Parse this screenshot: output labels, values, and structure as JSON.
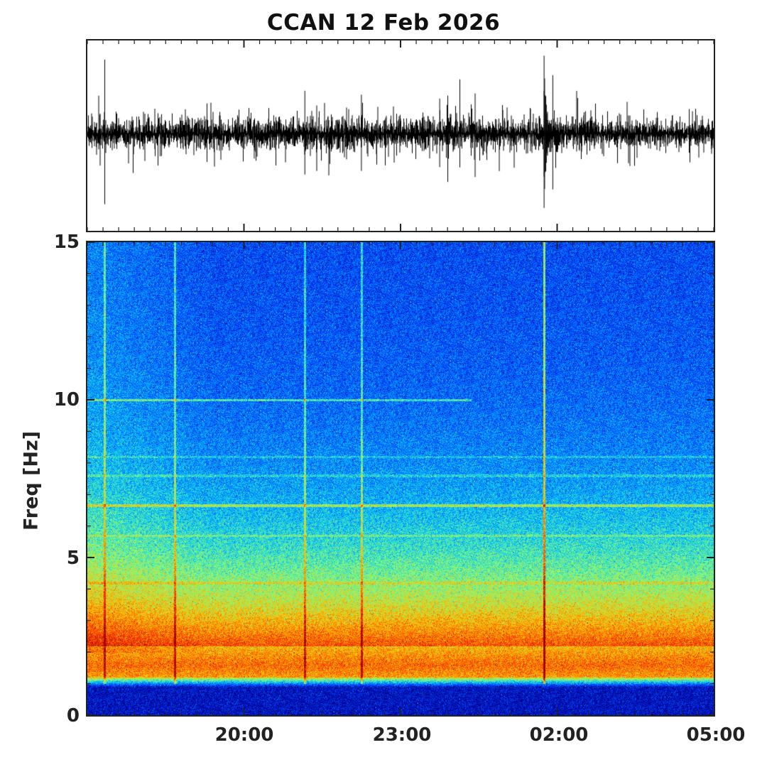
{
  "chart_data": [
    {
      "type": "line",
      "title": "CCAN  12 Feb 2026",
      "description": "seismogram trace",
      "x_range": [
        "17:00",
        "05:00"
      ],
      "events": [
        {
          "time": "17:20",
          "amplitude": 0.95
        },
        {
          "time": "21:10",
          "amplitude": 0.55
        },
        {
          "time": "22:15",
          "amplitude": 0.5
        },
        {
          "time": "23:45",
          "amplitude": 0.45
        },
        {
          "time": "01:45",
          "amplitude": 1.0
        },
        {
          "time": "01:55",
          "amplitude": 0.75
        }
      ]
    },
    {
      "type": "heatmap",
      "ylabel": "Freq [Hz]",
      "ylim": [
        0,
        15
      ],
      "yticks": [
        0,
        5,
        10,
        15
      ],
      "xticks": [
        "20:00",
        "23:00",
        "02:00",
        "05:00"
      ],
      "x_range": [
        "17:00",
        "05:00"
      ],
      "colormap": [
        "#00008f",
        "#0040ff",
        "#00c0ff",
        "#80ff80",
        "#ffc000",
        "#ff4000",
        "#a00000"
      ],
      "dominant_band_hz": [
        1.2,
        2.2
      ],
      "spectral_lines_hz": [
        10.0,
        6.65,
        8.2,
        7.6,
        5.7,
        4.2
      ],
      "broadband_events": [
        "17:20",
        "18:40",
        "21:10",
        "22:15",
        "01:45"
      ]
    }
  ]
}
